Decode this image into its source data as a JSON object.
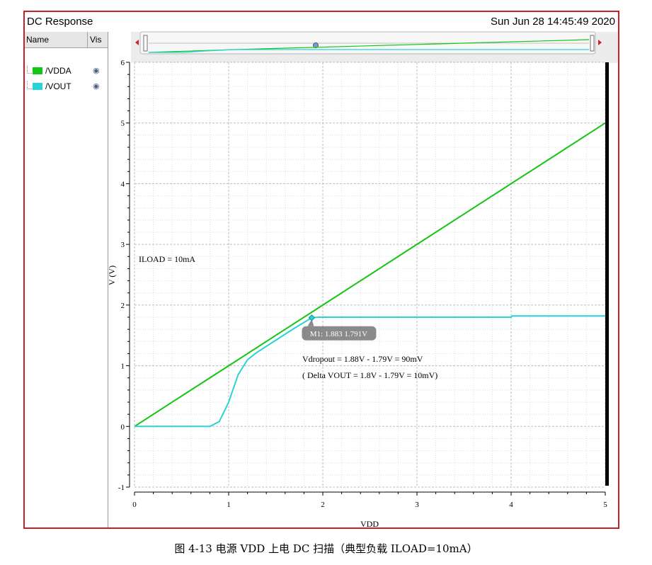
{
  "window": {
    "title": "DC Response",
    "timestamp": "Sun Jun 28 14:45:49 2020"
  },
  "panel": {
    "col_name": "Name",
    "col_vis": "Vis",
    "legend": [
      {
        "label": "/VDDA",
        "color": "#16c416",
        "icon": "eye-icon"
      },
      {
        "label": "/VOUT",
        "color": "#2ad2d8",
        "icon": "eye-icon"
      }
    ]
  },
  "chart_data": {
    "type": "line",
    "title": "",
    "xlabel": "VDD",
    "ylabel": "V (V)",
    "xlim": [
      0,
      5
    ],
    "ylim": [
      -1,
      6
    ],
    "x_ticks": [
      "0",
      "1",
      "2",
      "3",
      "4",
      "5"
    ],
    "y_ticks": [
      "-1",
      "0",
      "1",
      "2",
      "3",
      "4",
      "5",
      "6"
    ],
    "grid": true,
    "series": [
      {
        "name": "/VDDA",
        "color": "#16c416",
        "points": [
          [
            0,
            0
          ],
          [
            0.5,
            0.5
          ],
          [
            1,
            1
          ],
          [
            1.5,
            1.5
          ],
          [
            2,
            2
          ],
          [
            2.5,
            2.5
          ],
          [
            3,
            3
          ],
          [
            3.5,
            3.5
          ],
          [
            4,
            4
          ],
          [
            4.5,
            4.5
          ],
          [
            5,
            5
          ]
        ]
      },
      {
        "name": "/VOUT",
        "color": "#2ad2d8",
        "points": [
          [
            0,
            0
          ],
          [
            0.5,
            0
          ],
          [
            0.8,
            0
          ],
          [
            0.9,
            0.08
          ],
          [
            1.0,
            0.4
          ],
          [
            1.1,
            0.85
          ],
          [
            1.2,
            1.1
          ],
          [
            1.3,
            1.22
          ],
          [
            1.5,
            1.42
          ],
          [
            1.7,
            1.62
          ],
          [
            1.883,
            1.791
          ],
          [
            1.95,
            1.8
          ],
          [
            3,
            1.8
          ],
          [
            4,
            1.8
          ],
          [
            4.01,
            1.82
          ],
          [
            5,
            1.82
          ]
        ]
      }
    ],
    "marker": {
      "label": "M1: 1.883 1.791V",
      "x": 1.883,
      "y": 1.791
    },
    "annotations": [
      "ILOAD = 10mA",
      "Vdropout = 1.88V - 1.79V = 90mV",
      "( Delta VOUT = 1.8V - 1.79V = 10mV)"
    ]
  },
  "caption": "图 4-13  电源 VDD 上电 DC 扫描（典型负载 ILOAD=10mA）"
}
